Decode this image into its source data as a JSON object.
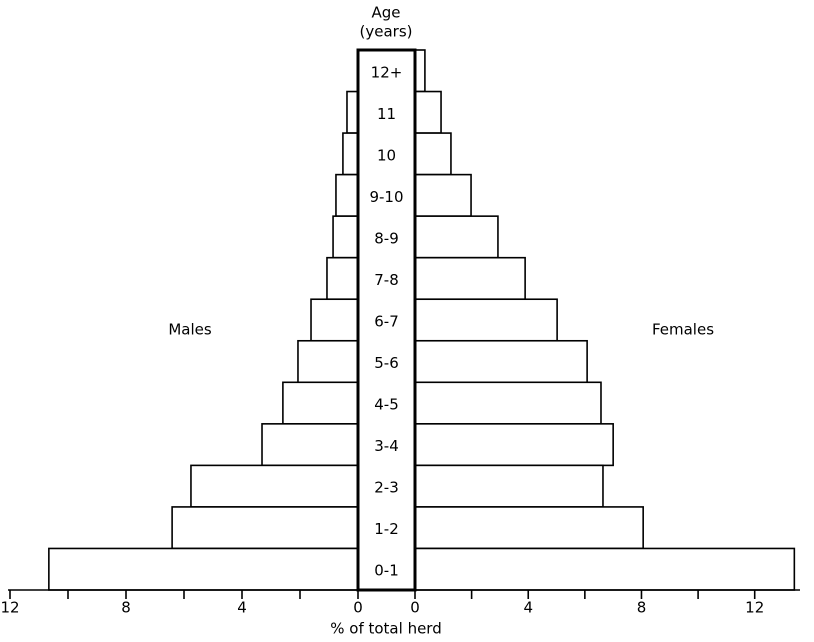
{
  "chart_data": {
    "type": "pyramid",
    "ylabel": [
      "Age",
      "(years)"
    ],
    "xlabel": "% of total herd",
    "categories": [
      "12+",
      "11",
      "10",
      "9-10",
      "8-9",
      "7-8",
      "6-7",
      "5-6",
      "4-5",
      "3-4",
      "2-3",
      "1-2",
      "0-1"
    ],
    "series": [
      {
        "name": "Males",
        "color": "#ffffff",
        "values": [
          0,
          0.38,
          0.52,
          0.76,
          0.86,
          1.07,
          1.62,
          2.07,
          2.59,
          3.31,
          5.76,
          6.41,
          10.66
        ]
      },
      {
        "name": "Females",
        "color": "#ffffff",
        "values": [
          0.35,
          0.92,
          1.27,
          1.98,
          2.93,
          3.89,
          5.02,
          6.08,
          6.57,
          7.0,
          6.64,
          8.06,
          13.4
        ]
      }
    ],
    "xlim_left": [
      0,
      12
    ],
    "xlim_right": [
      0,
      13.6
    ],
    "xticks": [
      0,
      4,
      8,
      12
    ],
    "xticks_minor": [
      2,
      6,
      10
    ]
  }
}
